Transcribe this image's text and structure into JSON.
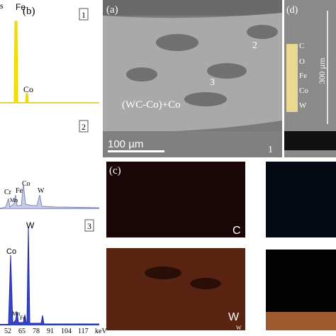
{
  "panel_b": {
    "cut_label": "s",
    "label": "(b)",
    "spectra": [
      {
        "number": "1",
        "peaks": [
          "Fe",
          "Co"
        ]
      },
      {
        "number": "2",
        "peaks": [
          "Cr",
          "Fe",
          "Co",
          "Mn",
          "W"
        ]
      },
      {
        "number": "3",
        "peaks": [
          "W",
          "Co",
          "Mn",
          "Fe"
        ]
      }
    ],
    "axis_labels": [
      "52",
      "65",
      "78",
      "91",
      "104",
      "117",
      "keV"
    ]
  },
  "panel_a": {
    "label": "(a)",
    "regions": [
      "2",
      "3",
      "1"
    ],
    "phase": "(WC-Co)+Co",
    "scale": "100 µm"
  },
  "panel_d": {
    "label": "(d)",
    "elements": [
      "C",
      "O",
      "Fe",
      "Co",
      "W"
    ],
    "scale": "300 µm"
  },
  "panel_c": {
    "label": "(c)",
    "maps": [
      "C",
      "W",
      "W"
    ]
  }
}
